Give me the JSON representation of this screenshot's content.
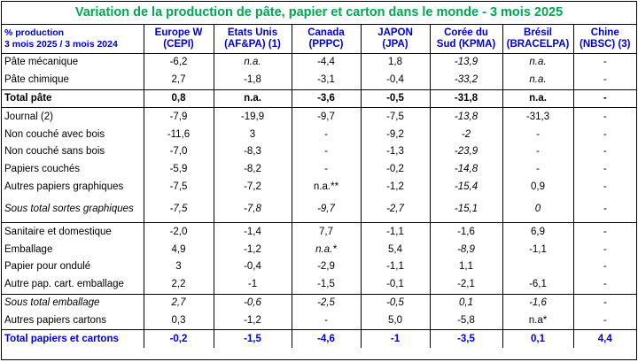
{
  "title": "Variation de la production de pâte, papier et carton dans le monde - 3 mois 2025",
  "header": {
    "label_line1": "% production",
    "label_line2": "3 mois 2025 / 3 mois 2024",
    "columns": [
      {
        "line1": "Europe  W",
        "line2": "(CEPI)"
      },
      {
        "line1": "Etats Unis",
        "line2": "(AF&PA) (1)"
      },
      {
        "line1": "Canada",
        "line2": "(PPPC)"
      },
      {
        "line1": "JAPON",
        "line2": "(JPA)"
      },
      {
        "line1": "Corée du",
        "line2": "Sud  (KPMA)"
      },
      {
        "line1": "Brésil",
        "line2": "(BRACELPA)"
      },
      {
        "line1": "Chine",
        "line2": "(NBSC) (3)"
      }
    ]
  },
  "rows": [
    {
      "label": "Pâte mécanique",
      "values": [
        "-6,2",
        "n.a.",
        "-4,4",
        "1,8",
        "-13,9",
        "n.a.",
        "-"
      ]
    },
    {
      "label": "Pâte chimique",
      "values": [
        "2,7",
        "-1,8",
        "-3,1",
        "-0,4",
        "-33,2",
        "n.a.",
        "-"
      ]
    },
    {
      "label": "Total pâte",
      "values": [
        "0,8",
        "n.a.",
        "-3,6",
        "-0,5",
        "-31,8",
        "n.a.",
        "-"
      ]
    },
    {
      "label": "Journal (2)",
      "values": [
        "-7,9",
        "-19,9",
        "-9,7",
        "-7,5",
        "-13,8",
        "-31,3",
        "-"
      ]
    },
    {
      "label": "Non couché avec bois",
      "values": [
        "-11,6",
        "3",
        "-",
        "-9,2",
        "-2",
        "-",
        "-"
      ]
    },
    {
      "label": "Non couché sans bois",
      "values": [
        "-7,0",
        "-8,3",
        "-",
        "-1,3",
        "-23,9",
        "-",
        "-"
      ]
    },
    {
      "label": "Papiers couchés",
      "values": [
        "-5,9",
        "-8,2",
        "-",
        "-0,2",
        "-14,8",
        "-",
        "-"
      ]
    },
    {
      "label": "Autres papiers graphiques",
      "values": [
        "-7,5",
        "-7,2",
        "n.a.**",
        "-1,2",
        "-15,4",
        "0,9",
        "-"
      ]
    },
    {
      "label": "Sous total sortes graphiques",
      "values": [
        "-7,5",
        "-7,8",
        "-9,7",
        "-2,7",
        "-15,1",
        "0",
        "-"
      ]
    },
    {
      "label": "Sanitaire et domestique",
      "values": [
        "-2,0",
        "-1,4",
        "7,7",
        "-1,1",
        "-1,6",
        "6,9",
        "-"
      ]
    },
    {
      "label": "Emballage",
      "values": [
        "4,9",
        "-1,2",
        "n.a.*",
        "5,4",
        "-8,9",
        "-1,1",
        "-"
      ]
    },
    {
      "label": "Papier pour ondulé",
      "values": [
        "3",
        "-0,4",
        "-2,9",
        "-1,1",
        "1,1",
        "",
        "-"
      ]
    },
    {
      "label": "Autre pap. cart. emballage",
      "values": [
        "2,2",
        "-1",
        "-1,5",
        "-0,1",
        "-2,1",
        "-6,1",
        "-"
      ]
    },
    {
      "label": "Sous total emballage",
      "values": [
        "2,7",
        "-0,6",
        "-2,5",
        "-0,5",
        "0,1",
        "-1,6",
        "-"
      ]
    },
    {
      "label": "Autres papiers cartons",
      "values": [
        "0,3",
        "-1,2",
        "-",
        "5,0",
        "-5,8",
        "n.a*",
        "-"
      ]
    },
    {
      "label": "Total papiers et cartons",
      "values": [
        "-0,2",
        "-1,5",
        "-4,6",
        "-1",
        "-3,5",
        "0,1",
        "4,4"
      ]
    }
  ]
}
